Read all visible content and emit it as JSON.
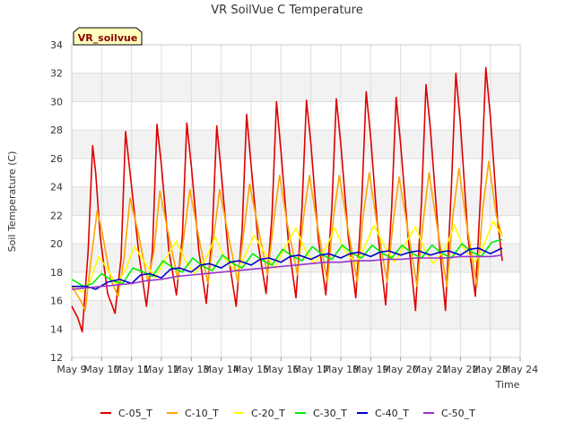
{
  "chart_data": {
    "type": "line",
    "title": "VR SoilVue C Temperature",
    "badge": "VR_soilvue",
    "xlabel": "Time",
    "ylabel": "Soil Temperature (C)",
    "xlim": [
      9,
      24
    ],
    "ylim": [
      12,
      34
    ],
    "x_ticks": [
      {
        "value": 9,
        "label": "May 9"
      },
      {
        "value": 10,
        "label": "May 10"
      },
      {
        "value": 11,
        "label": "May 11"
      },
      {
        "value": 12,
        "label": "May 12"
      },
      {
        "value": 13,
        "label": "May 13"
      },
      {
        "value": 14,
        "label": "May 14"
      },
      {
        "value": 15,
        "label": "May 15"
      },
      {
        "value": 16,
        "label": "May 16"
      },
      {
        "value": 17,
        "label": "May 17"
      },
      {
        "value": 18,
        "label": "May 18"
      },
      {
        "value": 19,
        "label": "May 19"
      },
      {
        "value": 20,
        "label": "May 20"
      },
      {
        "value": 21,
        "label": "May 21"
      },
      {
        "value": 22,
        "label": "May 22"
      },
      {
        "value": 23,
        "label": "May 23"
      },
      {
        "value": 24,
        "label": "May 24"
      }
    ],
    "y_ticks": [
      12,
      14,
      16,
      18,
      20,
      22,
      24,
      26,
      28,
      30,
      32,
      34
    ],
    "grid": true,
    "legend_position": "bottom",
    "series": [
      {
        "name": "C-05_T",
        "color": "#dd0000",
        "x": [
          9.0,
          9.2,
          9.35,
          9.55,
          9.7,
          9.8,
          9.95,
          10.2,
          10.45,
          10.65,
          10.8,
          10.95,
          11.25,
          11.5,
          11.7,
          11.85,
          12.0,
          12.25,
          12.5,
          12.7,
          12.85,
          13.0,
          13.25,
          13.5,
          13.7,
          13.85,
          14.0,
          14.25,
          14.5,
          14.7,
          14.85,
          15.0,
          15.25,
          15.5,
          15.7,
          15.85,
          16.0,
          16.25,
          16.5,
          16.7,
          16.85,
          17.0,
          17.25,
          17.5,
          17.7,
          17.85,
          18.0,
          18.25,
          18.5,
          18.7,
          18.85,
          19.0,
          19.25,
          19.5,
          19.7,
          19.85,
          20.0,
          20.25,
          20.5,
          20.7,
          20.85,
          21.0,
          21.25,
          21.5,
          21.7,
          21.85,
          22.0,
          22.25,
          22.5,
          22.7,
          22.85,
          23.0,
          23.25,
          23.4
        ],
        "y": [
          15.6,
          14.8,
          13.8,
          19.5,
          26.9,
          25.0,
          20.5,
          16.5,
          15.1,
          19.0,
          27.9,
          25.0,
          19.2,
          15.6,
          19.5,
          28.4,
          25.5,
          19.5,
          16.4,
          20.5,
          28.5,
          25.5,
          19.5,
          15.8,
          20.8,
          28.3,
          25.0,
          19.0,
          15.6,
          21.0,
          29.1,
          25.5,
          19.8,
          16.5,
          22.0,
          30.0,
          26.5,
          20.0,
          16.2,
          22.5,
          30.1,
          27.0,
          20.3,
          16.4,
          22.5,
          30.2,
          27.0,
          20.5,
          16.2,
          23.0,
          30.7,
          27.5,
          20.5,
          15.7,
          22.5,
          30.3,
          27.0,
          20.5,
          15.3,
          23.0,
          31.2,
          28.0,
          21.0,
          15.3,
          24.0,
          32.0,
          28.5,
          20.5,
          16.3,
          24.5,
          32.4,
          29.0,
          21.5,
          18.8
        ]
      },
      {
        "name": "C-10_T",
        "color": "#ffa500",
        "x": [
          9.0,
          9.3,
          9.45,
          9.65,
          9.85,
          10.0,
          10.3,
          10.55,
          10.75,
          10.95,
          11.2,
          11.55,
          11.75,
          11.95,
          12.2,
          12.55,
          12.75,
          12.95,
          13.2,
          13.55,
          13.75,
          13.95,
          14.2,
          14.55,
          14.75,
          14.95,
          15.2,
          15.55,
          15.75,
          15.95,
          16.2,
          16.55,
          16.75,
          16.95,
          17.2,
          17.55,
          17.75,
          17.95,
          18.2,
          18.55,
          18.75,
          18.95,
          19.2,
          19.55,
          19.75,
          19.95,
          20.2,
          20.55,
          20.75,
          20.95,
          21.2,
          21.55,
          21.75,
          21.95,
          22.2,
          22.55,
          22.75,
          22.95,
          23.2,
          23.4
        ],
        "y": [
          17.0,
          16.0,
          15.3,
          19.0,
          22.3,
          21.0,
          17.5,
          16.3,
          19.0,
          23.2,
          21.0,
          17.3,
          19.5,
          23.7,
          21.0,
          17.5,
          20.5,
          23.8,
          21.0,
          17.2,
          20.5,
          23.8,
          21.0,
          17.3,
          20.8,
          24.2,
          21.5,
          17.8,
          21.5,
          24.8,
          21.5,
          17.8,
          21.8,
          24.8,
          21.5,
          17.3,
          21.8,
          24.8,
          21.5,
          17.3,
          22.0,
          25.0,
          21.5,
          17.3,
          21.5,
          24.7,
          21.5,
          17.0,
          21.5,
          25.0,
          21.5,
          17.0,
          22.0,
          25.3,
          21.5,
          17.0,
          22.5,
          25.8,
          22.0,
          20.5
        ]
      },
      {
        "name": "C-20_T",
        "color": "#ffff00",
        "x": [
          9.0,
          9.35,
          9.6,
          9.9,
          10.2,
          10.5,
          10.8,
          11.1,
          11.5,
          11.8,
          12.1,
          12.5,
          12.8,
          13.1,
          13.5,
          13.8,
          14.1,
          14.5,
          14.8,
          15.1,
          15.5,
          15.8,
          16.1,
          16.5,
          16.8,
          17.1,
          17.5,
          17.8,
          18.1,
          18.5,
          18.8,
          19.1,
          19.5,
          19.8,
          20.1,
          20.5,
          20.8,
          21.1,
          21.5,
          21.8,
          22.1,
          22.5,
          22.8,
          23.1,
          23.4
        ],
        "y": [
          17.0,
          16.6,
          17.3,
          19.1,
          18.2,
          17.1,
          18.2,
          19.8,
          18.5,
          17.6,
          18.8,
          20.2,
          18.8,
          17.9,
          19.0,
          20.5,
          19.0,
          18.0,
          19.2,
          20.6,
          19.2,
          18.3,
          19.6,
          21.1,
          19.6,
          18.6,
          19.7,
          21.1,
          19.6,
          18.6,
          19.8,
          21.3,
          19.7,
          18.7,
          19.8,
          21.2,
          19.6,
          18.6,
          19.7,
          21.3,
          19.7,
          18.7,
          20.0,
          21.6,
          20.5
        ]
      },
      {
        "name": "C-30_T",
        "color": "#00ee00",
        "x": [
          9.0,
          9.4,
          9.7,
          10.0,
          10.35,
          10.7,
          11.05,
          11.4,
          11.7,
          12.05,
          12.4,
          12.7,
          13.05,
          13.4,
          13.7,
          14.05,
          14.4,
          14.7,
          15.05,
          15.4,
          15.7,
          16.05,
          16.4,
          16.7,
          17.05,
          17.4,
          17.7,
          18.05,
          18.4,
          18.7,
          19.05,
          19.4,
          19.7,
          20.05,
          20.4,
          20.7,
          21.05,
          21.4,
          21.7,
          22.05,
          22.4,
          22.7,
          23.05,
          23.4
        ],
        "y": [
          17.5,
          17.0,
          17.2,
          17.9,
          17.4,
          17.2,
          18.3,
          18.0,
          17.7,
          18.8,
          18.3,
          18.0,
          19.0,
          18.4,
          18.1,
          19.2,
          18.6,
          18.3,
          19.3,
          18.8,
          18.5,
          19.6,
          19.1,
          18.8,
          19.8,
          19.2,
          18.9,
          19.9,
          19.3,
          19.0,
          19.9,
          19.3,
          19.0,
          19.9,
          19.3,
          19.0,
          19.9,
          19.3,
          19.0,
          20.0,
          19.4,
          19.1,
          20.1,
          20.3
        ]
      },
      {
        "name": "C-40_T",
        "color": "#0000cc",
        "x": [
          9.0,
          9.5,
          9.8,
          10.2,
          10.6,
          11.0,
          11.3,
          11.6,
          12.0,
          12.3,
          12.6,
          13.0,
          13.3,
          13.6,
          14.0,
          14.3,
          14.6,
          15.0,
          15.3,
          15.6,
          16.0,
          16.3,
          16.6,
          17.0,
          17.3,
          17.6,
          18.0,
          18.3,
          18.6,
          19.0,
          19.3,
          19.6,
          20.0,
          20.3,
          20.6,
          21.0,
          21.3,
          21.6,
          22.0,
          22.3,
          22.6,
          23.0,
          23.4
        ],
        "y": [
          17.0,
          17.0,
          16.8,
          17.3,
          17.5,
          17.2,
          17.8,
          17.9,
          17.6,
          18.2,
          18.3,
          18.0,
          18.5,
          18.6,
          18.3,
          18.7,
          18.8,
          18.5,
          18.9,
          19.0,
          18.7,
          19.1,
          19.2,
          18.9,
          19.2,
          19.3,
          19.0,
          19.3,
          19.4,
          19.1,
          19.4,
          19.5,
          19.2,
          19.4,
          19.5,
          19.2,
          19.4,
          19.5,
          19.2,
          19.6,
          19.7,
          19.3,
          19.7
        ]
      },
      {
        "name": "C-50_T",
        "color": "#9933cc",
        "x": [
          9.0,
          9.5,
          10.0,
          10.5,
          11.0,
          11.5,
          12.0,
          12.5,
          13.0,
          13.5,
          14.0,
          14.5,
          15.0,
          15.5,
          16.0,
          16.5,
          17.0,
          17.5,
          18.0,
          18.5,
          19.0,
          19.5,
          20.0,
          20.5,
          21.0,
          21.5,
          22.0,
          22.5,
          23.0,
          23.4
        ],
        "y": [
          16.8,
          16.9,
          17.0,
          17.1,
          17.2,
          17.4,
          17.5,
          17.7,
          17.8,
          17.9,
          18.0,
          18.1,
          18.2,
          18.3,
          18.4,
          18.5,
          18.6,
          18.7,
          18.7,
          18.8,
          18.8,
          18.9,
          18.9,
          19.0,
          19.0,
          19.0,
          19.1,
          19.1,
          19.1,
          19.2
        ]
      }
    ]
  }
}
